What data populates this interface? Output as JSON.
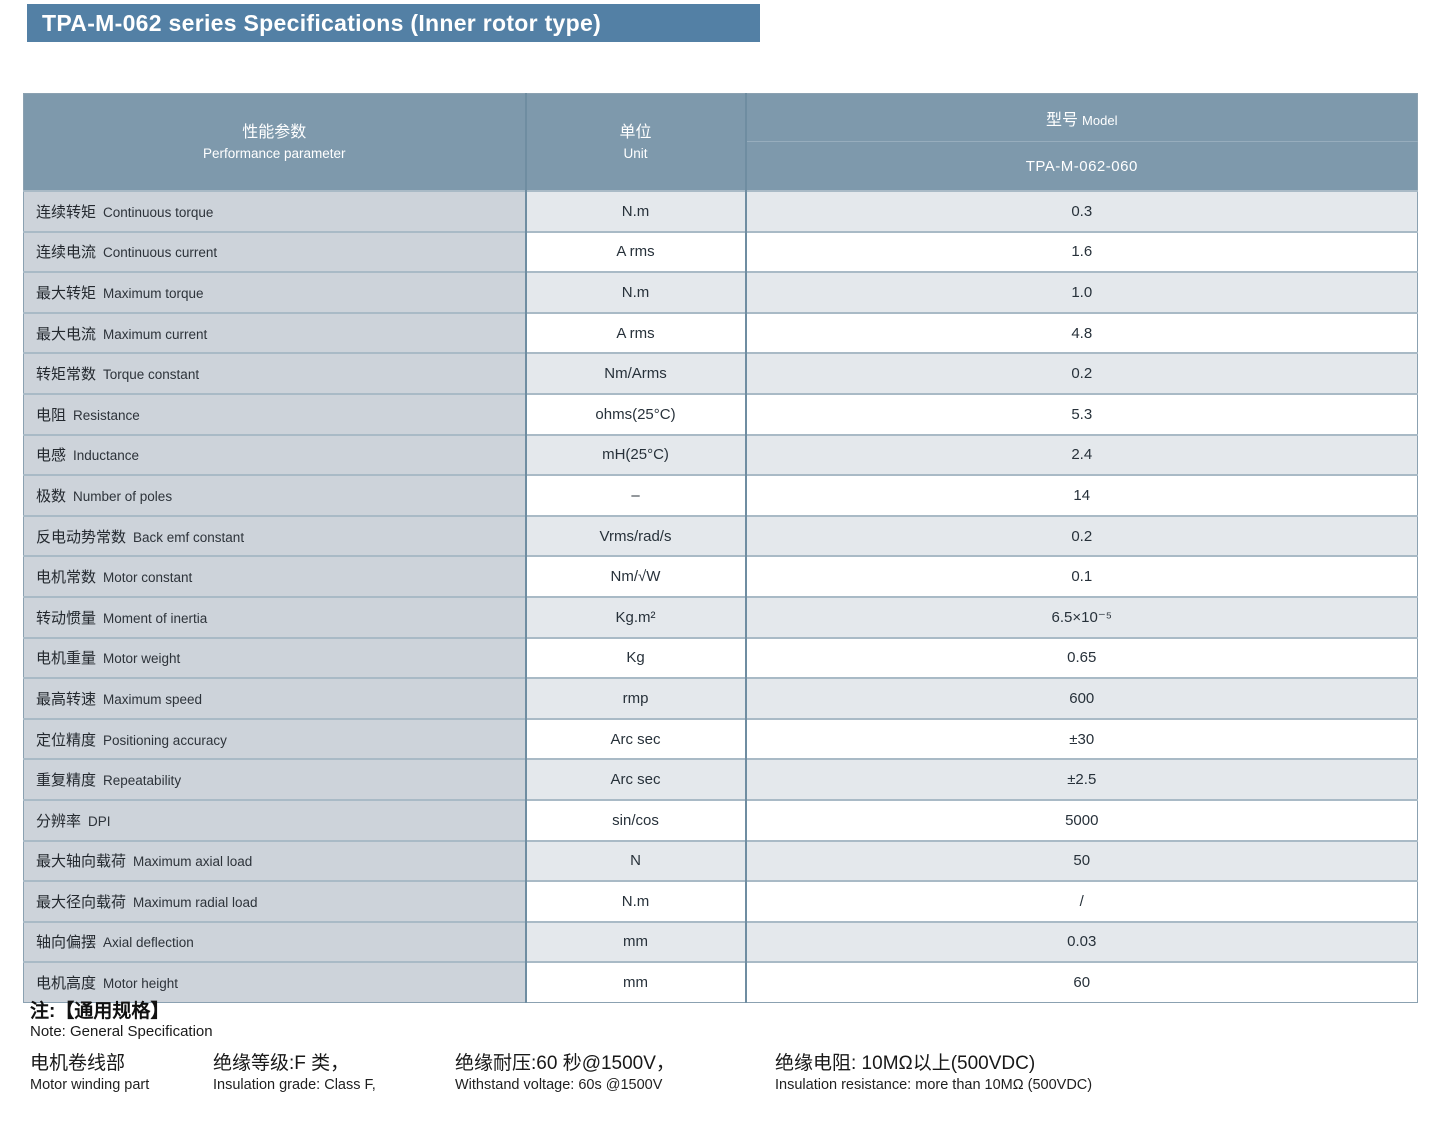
{
  "page_title": "TPA-M-062 series Specifications (Inner rotor type)",
  "colors": {
    "title_bar": "#5380a5",
    "header_bg": "#7e99ac",
    "param_col_bg": "#cdd3da",
    "row_alt_bg": "#e4e8ec",
    "row_bg": "#ffffff",
    "grid_line": "#a9bac6"
  },
  "table": {
    "header": {
      "param_zh": "性能参数",
      "param_en": "Performance parameter",
      "unit_zh": "单位",
      "unit_en": "Unit",
      "model_zh": "型号",
      "model_en": "Model",
      "model_value": "TPA-M-062-060"
    },
    "rows": [
      {
        "zh": "连续转矩",
        "en": "Continuous torque",
        "unit": "N.m",
        "value": "0.3"
      },
      {
        "zh": "连续电流",
        "en": "Continuous current",
        "unit": "A rms",
        "value": "1.6"
      },
      {
        "zh": "最大转矩",
        "en": "Maximum torque",
        "unit": "N.m",
        "value": "1.0"
      },
      {
        "zh": "最大电流",
        "en": "Maximum current",
        "unit": "A rms",
        "value": "4.8"
      },
      {
        "zh": "转矩常数",
        "en": "Torque constant",
        "unit": "Nm/Arms",
        "value": "0.2"
      },
      {
        "zh": "电阻",
        "en": "Resistance",
        "unit": "ohms(25°C)",
        "value": "5.3"
      },
      {
        "zh": "电感",
        "en": "Inductance",
        "unit": "mH(25°C)",
        "value": "2.4"
      },
      {
        "zh": "极数",
        "en": "Number of poles",
        "unit": "–",
        "value": "14"
      },
      {
        "zh": "反电动势常数",
        "en": "Back emf constant",
        "unit": "Vrms/rad/s",
        "value": "0.2"
      },
      {
        "zh": "电机常数",
        "en": "Motor constant",
        "unit": "Nm/√W",
        "value": "0.1"
      },
      {
        "zh": "转动惯量",
        "en": "Moment of inertia",
        "unit": "Kg.m²",
        "value": "6.5×10⁻⁵"
      },
      {
        "zh": "电机重量",
        "en": "Motor weight",
        "unit": "Kg",
        "value": "0.65"
      },
      {
        "zh": "最高转速",
        "en": "Maximum speed",
        "unit": "rmp",
        "value": "600"
      },
      {
        "zh": "定位精度",
        "en": "Positioning accuracy",
        "unit": "Arc sec",
        "value": "±30"
      },
      {
        "zh": "重复精度",
        "en": "Repeatability",
        "unit": "Arc sec",
        "value": "±2.5"
      },
      {
        "zh": "分辨率",
        "en": "DPI",
        "unit": "sin/cos",
        "value": "5000"
      },
      {
        "zh": "最大轴向载荷",
        "en": "Maximum axial load",
        "unit": "N",
        "value": "50"
      },
      {
        "zh": "最大径向载荷",
        "en": "Maximum radial load",
        "unit": "N.m",
        "value": "/"
      },
      {
        "zh": "轴向偏摆",
        "en": "Axial deflection",
        "unit": "mm",
        "value": "0.03"
      },
      {
        "zh": "电机高度",
        "en": "Motor height",
        "unit": "mm",
        "value": "60"
      }
    ]
  },
  "notes": {
    "title_zh": "注:【通用规格】",
    "title_en": "Note: General Specification",
    "items": [
      {
        "zh": "电机卷线部",
        "en": "Motor winding part"
      },
      {
        "zh": "绝缘等级:F 类，",
        "en": "Insulation grade: Class F,"
      },
      {
        "zh": "绝缘耐压:60 秒@1500V，",
        "en": "Withstand voltage: 60s @1500V"
      },
      {
        "zh": "绝缘电阻: 10MΩ以上(500VDC)",
        "en": "Insulation resistance: more than 10MΩ (500VDC)"
      }
    ]
  }
}
